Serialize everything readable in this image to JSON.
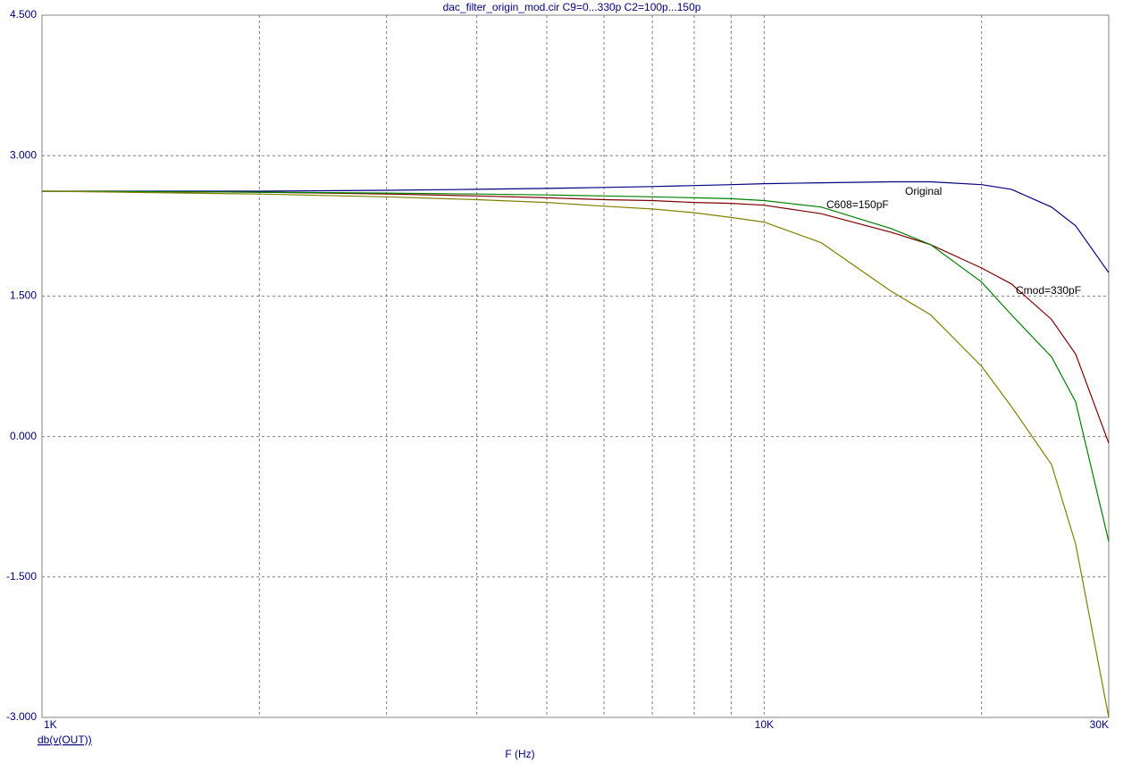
{
  "chart_data": {
    "type": "line",
    "title": "dac_filter_origin_mod.cir C9=0...330p C2=100p...150p",
    "y_label": "db(v(OUT))",
    "x_label": "F (Hz)",
    "xlog": true,
    "grid": true,
    "xlim": [
      1000,
      30000
    ],
    "xticks": [
      {
        "value": 1000,
        "label": "1K"
      },
      {
        "value": 10000,
        "label": "10K"
      },
      {
        "value": 30000,
        "label": "30K"
      }
    ],
    "xgrid": [
      2000,
      3000,
      4000,
      5000,
      6000,
      7000,
      8000,
      9000,
      10000,
      20000
    ],
    "ylim": [
      -3,
      4.5
    ],
    "yticks": [
      {
        "value": -3,
        "label": "-3.000"
      },
      {
        "value": -1.5,
        "label": "-1.500"
      },
      {
        "value": 0,
        "label": "0.000"
      },
      {
        "value": 1.5,
        "label": "1.500"
      },
      {
        "value": 3,
        "label": "3.000"
      },
      {
        "value": 4.5,
        "label": "4.500"
      }
    ],
    "x": [
      1000,
      2000,
      3000,
      4000,
      5000,
      6000,
      7000,
      8000,
      9000,
      10000,
      12000,
      15000,
      17000,
      20000,
      22000,
      25000,
      27000,
      30000
    ],
    "series": [
      {
        "name": "Original",
        "color": "#000080",
        "values": [
          2.62,
          2.62,
          2.63,
          2.64,
          2.65,
          2.66,
          2.67,
          2.68,
          2.69,
          2.7,
          2.71,
          2.72,
          2.72,
          2.69,
          2.64,
          2.45,
          2.25,
          1.75
        ]
      },
      {
        "name": "Cmod=330pF",
        "color": "#800000",
        "values": [
          2.62,
          2.61,
          2.59,
          2.57,
          2.55,
          2.53,
          2.52,
          2.5,
          2.49,
          2.47,
          2.38,
          2.18,
          2.05,
          1.8,
          1.63,
          1.25,
          0.88,
          -0.07
        ]
      },
      {
        "name": "C608=150pF",
        "color": "#008000",
        "values": [
          2.62,
          2.61,
          2.6,
          2.59,
          2.58,
          2.57,
          2.56,
          2.55,
          2.54,
          2.52,
          2.45,
          2.22,
          2.05,
          1.65,
          1.3,
          0.85,
          0.37,
          -1.12
        ]
      },
      {
        "color": "#808000",
        "values": [
          2.62,
          2.59,
          2.56,
          2.53,
          2.5,
          2.46,
          2.43,
          2.39,
          2.34,
          2.29,
          2.07,
          1.55,
          1.3,
          0.75,
          0.32,
          -0.3,
          -1.15,
          -3.0
        ]
      }
    ]
  }
}
